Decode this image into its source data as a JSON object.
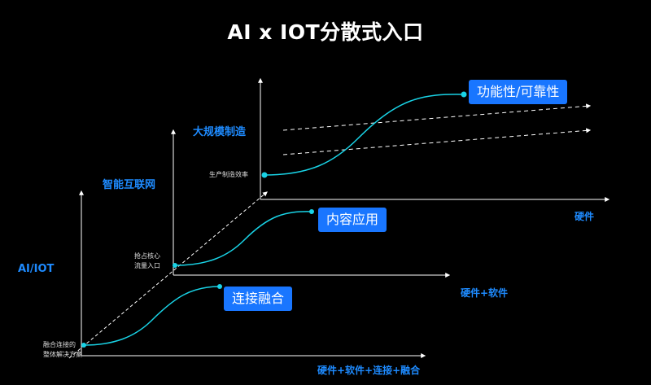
{
  "title": "AI x IOT分散式入口",
  "stages": [
    {
      "name": "AI/IOT",
      "entry_label_lines": [
        "融合连接的",
        "整体解决方案"
      ],
      "pill": "连接融合",
      "x_axis_label": "硬件+软件+连接+融合"
    },
    {
      "name": "智能互联网",
      "entry_label_lines": [
        "抢占核心",
        "流量入口"
      ],
      "pill": "内容应用",
      "x_axis_label": "硬件+软件"
    },
    {
      "name": "大规模制造",
      "entry_label_lines": [
        "生产制造效率"
      ],
      "pill": "功能性/可靠性",
      "x_axis_label": "硬件"
    }
  ],
  "colors": {
    "accent": "#1976ff",
    "label_blue": "#1e8bff",
    "curve": "#19d3e6",
    "axis": "#ffffff",
    "background": "#000000"
  }
}
